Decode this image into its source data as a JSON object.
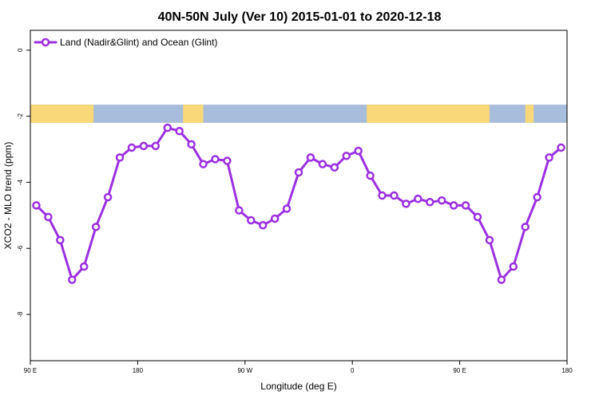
{
  "colors": {
    "series": "#9b30e0",
    "land": "#f8d878",
    "ocean": "#a8bcdc",
    "frame": "#000000"
  },
  "chart_data": {
    "type": "line",
    "title": "40N-50N July (Ver 10)   2015-01-01 to 2020-12-18",
    "xlabel": "Longitude (deg E)",
    "ylabel": "XCO2 - MLO trend (ppm)",
    "x_tick_labels": [
      "90 E",
      "180",
      "90 W",
      "0",
      "90 E",
      "180"
    ],
    "y_tick_labels": [
      "0",
      "-2",
      "-4",
      "-6",
      "-8"
    ],
    "y_ticks": [
      0,
      -2,
      -4,
      -6,
      -8
    ],
    "ylim": [
      -9.4,
      0.6
    ],
    "xlim_deg_east": [
      90,
      540
    ],
    "grid": false,
    "legend": {
      "position": "top-left"
    },
    "map_strip": {
      "ylim": [
        -2.2,
        -1.65
      ]
    },
    "series": [
      {
        "name": "Land (Nadir&Glint) and Ocean (Glint)",
        "marker": "open-circle",
        "x": [
          95,
          105,
          115,
          125,
          135,
          145,
          155,
          165,
          175,
          185,
          195,
          205,
          215,
          225,
          235,
          245,
          255,
          265,
          275,
          285,
          295,
          305,
          315,
          325,
          335,
          345,
          355,
          365,
          375,
          385,
          395,
          405,
          415,
          425,
          435,
          445,
          455,
          465,
          475,
          485,
          495,
          505,
          515,
          525,
          535
        ],
        "values": [
          -4.7,
          -5.05,
          -5.75,
          -6.95,
          -6.55,
          -5.35,
          -4.45,
          -3.25,
          -2.95,
          -2.9,
          -2.9,
          -2.35,
          -2.45,
          -2.85,
          -3.45,
          -3.3,
          -3.35,
          -4.85,
          -5.15,
          -5.3,
          -5.1,
          -4.8,
          -3.7,
          -3.25,
          -3.45,
          -3.55,
          -3.2,
          -3.05,
          -3.8,
          -4.4,
          -4.4,
          -4.65,
          -4.5,
          -4.6,
          -4.55,
          -4.7,
          -4.7,
          -5.05,
          -5.75,
          -6.95,
          -6.55,
          -5.35,
          -4.45,
          -3.25,
          -2.95
        ]
      }
    ]
  }
}
